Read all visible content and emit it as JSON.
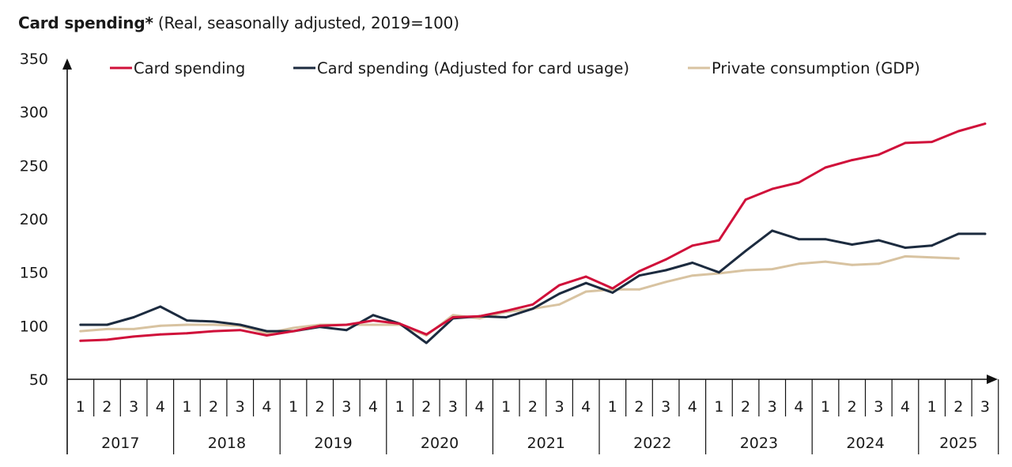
{
  "chart_data": {
    "type": "line",
    "title": "Card spending*",
    "subtitle": "(Real, seasonally adjusted, 2019=100)",
    "xlabel": "",
    "ylabel": "",
    "ylim": [
      50,
      350
    ],
    "yticks": [
      "350",
      "300",
      "250",
      "200",
      "150",
      "100",
      "50"
    ],
    "ytick_values": [
      350,
      300,
      250,
      200,
      150,
      100,
      50
    ],
    "grid": false,
    "legend_position": "top",
    "years": [
      "2017",
      "2018",
      "2019",
      "2020",
      "2021",
      "2022",
      "2023",
      "2024",
      "2025"
    ],
    "quarters_per_year": [
      4,
      4,
      4,
      4,
      4,
      4,
      4,
      4,
      3
    ],
    "quarter_labels": [
      "1",
      "2",
      "3",
      "4",
      "1",
      "2",
      "3",
      "4",
      "1",
      "2",
      "3",
      "4",
      "1",
      "2",
      "3",
      "4",
      "1",
      "2",
      "3",
      "4",
      "1",
      "2",
      "3",
      "4",
      "1",
      "2",
      "3",
      "4",
      "1",
      "2",
      "3",
      "4",
      "1",
      "2",
      "3"
    ],
    "x": [
      "2017Q1",
      "2017Q2",
      "2017Q3",
      "2017Q4",
      "2018Q1",
      "2018Q2",
      "2018Q3",
      "2018Q4",
      "2019Q1",
      "2019Q2",
      "2019Q3",
      "2019Q4",
      "2020Q1",
      "2020Q2",
      "2020Q3",
      "2020Q4",
      "2021Q1",
      "2021Q2",
      "2021Q3",
      "2021Q4",
      "2022Q1",
      "2022Q2",
      "2022Q3",
      "2022Q4",
      "2023Q1",
      "2023Q2",
      "2023Q3",
      "2023Q4",
      "2024Q1",
      "2024Q2",
      "2024Q3",
      "2024Q4",
      "2025Q1",
      "2025Q2",
      "2025Q3"
    ],
    "series": [
      {
        "name": "Card spending",
        "color": "#d0103a",
        "values": [
          86,
          87,
          90,
          92,
          93,
          95,
          96,
          91,
          95,
          100,
          101,
          105,
          102,
          92,
          108,
          109,
          114,
          120,
          138,
          146,
          135,
          151,
          162,
          175,
          180,
          218,
          228,
          234,
          248,
          255,
          260,
          271,
          272,
          282,
          289
        ]
      },
      {
        "name": "Card spending (Adjusted for card usage)",
        "color": "#1c2b3f",
        "values": [
          101,
          101,
          108,
          118,
          105,
          104,
          101,
          95,
          95,
          99,
          96,
          110,
          102,
          84,
          107,
          109,
          108,
          116,
          130,
          140,
          131,
          147,
          152,
          159,
          150,
          170,
          189,
          181,
          181,
          176,
          180,
          173,
          175,
          186,
          186
        ]
      },
      {
        "name": "Private consumption (GDP)",
        "color": "#d8c3a1",
        "values": [
          95,
          97,
          97,
          100,
          101,
          101,
          100,
          93,
          98,
          101,
          101,
          101,
          101,
          91,
          110,
          107,
          113,
          116,
          120,
          132,
          134,
          134,
          141,
          147,
          149,
          152,
          153,
          158,
          160,
          157,
          158,
          165,
          164,
          163,
          null
        ]
      }
    ]
  }
}
